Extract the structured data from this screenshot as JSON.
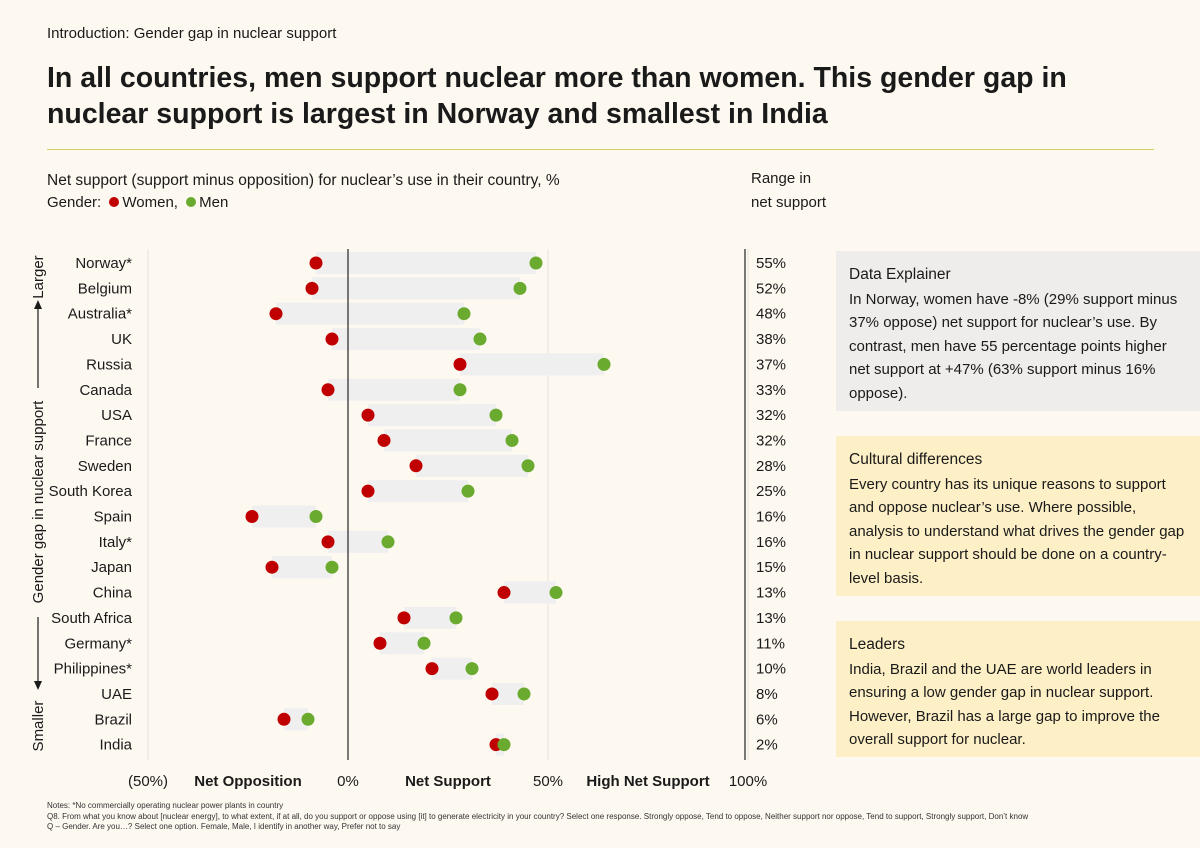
{
  "header": {
    "breadcrumb_lead": "Introduction:",
    "breadcrumb_topic": "Gender gap in nuclear support",
    "title": "In all countries, men support nuclear more than women. This gender gap in nuclear support is largest in Norway and smallest in India"
  },
  "chart_data": {
    "type": "dumbbell",
    "subtitle": "Net support (support minus opposition) for nuclear’s use in their country, %",
    "legend_prefix": "Gender:",
    "legend": [
      "Women,",
      "Men"
    ],
    "colors": {
      "women": "#c00000",
      "men": "#6aaa2e",
      "band": "#efefef",
      "zero_line": "#333333",
      "grid": "#e6e3dc"
    },
    "range_header": [
      "Range in",
      "net support"
    ],
    "y_axis_label": "Gender gap in nuclear support",
    "y_axis_top": "Larger",
    "y_axis_bottom": "Smaller",
    "xlim": [
      -50,
      100
    ],
    "x_ticks": [
      {
        "value": -50,
        "label": "(50%)"
      },
      {
        "value": 0,
        "label": "0%"
      },
      {
        "value": 50,
        "label": "50%"
      },
      {
        "value": 100,
        "label": "100%"
      }
    ],
    "x_zone_labels": [
      {
        "value": -25,
        "label": "Net Opposition"
      },
      {
        "value": 25,
        "label": "Net Support"
      },
      {
        "value": 75,
        "label": "High Net Support"
      }
    ],
    "categories": [
      "Norway*",
      "Belgium",
      "Australia*",
      "UK",
      "Russia",
      "Canada",
      "USA",
      "France",
      "Sweden",
      "South Korea",
      "Spain",
      "Italy*",
      "Japan",
      "China",
      "South Africa",
      "Germany*",
      "Philippines*",
      "UAE",
      "Brazil",
      "India"
    ],
    "series": [
      {
        "name": "Women",
        "values": [
          -8,
          -9,
          -18,
          -4,
          28,
          -5,
          5,
          9,
          17,
          5,
          -24,
          -5,
          -19,
          39,
          14,
          8,
          21,
          36,
          -16,
          37
        ]
      },
      {
        "name": "Men",
        "values": [
          47,
          43,
          29,
          33,
          64,
          28,
          37,
          41,
          45,
          30,
          -8,
          10,
          -4,
          52,
          27,
          19,
          31,
          44,
          -10,
          39
        ]
      }
    ],
    "range_labels": [
      "55%",
      "52%",
      "48%",
      "38%",
      "37%",
      "33%",
      "32%",
      "32%",
      "28%",
      "25%",
      "16%",
      "16%",
      "15%",
      "13%",
      "13%",
      "11%",
      "10%",
      "8%",
      "6%",
      "2%"
    ]
  },
  "panels": {
    "explainer": {
      "heading": "Data Explainer",
      "body": "In Norway, women have -8% (29% support minus 37% oppose) net support for nuclear’s use. By contrast, men have 55 percentage points higher net support at +47% (63% support minus 16% oppose)."
    },
    "cultural": {
      "heading": "Cultural differences",
      "body": "Every country has its unique reasons to support and oppose nuclear’s use. Where possible, analysis to understand what drives the gender gap in nuclear support should be done on a country-level basis."
    },
    "leaders": {
      "heading": "Leaders",
      "body": "India, Brazil and the UAE are world leaders in ensuring a low gender gap in nuclear support. However, Brazil has a large gap to improve the overall support for nuclear."
    }
  },
  "notes": [
    "Notes: *No commercially operating nuclear power plants in country",
    "Q8. From what you know about [nuclear energy], to what extent, if at all, do you support or oppose using [it] to generate electricity in your country? Select one response. Strongly oppose, Tend to oppose, Neither support nor oppose, Tend to support, Strongly support, Don’t know",
    "Q – Gender. Are you…? Select one option. Female, Male, I identify in another way, Prefer not to say"
  ]
}
